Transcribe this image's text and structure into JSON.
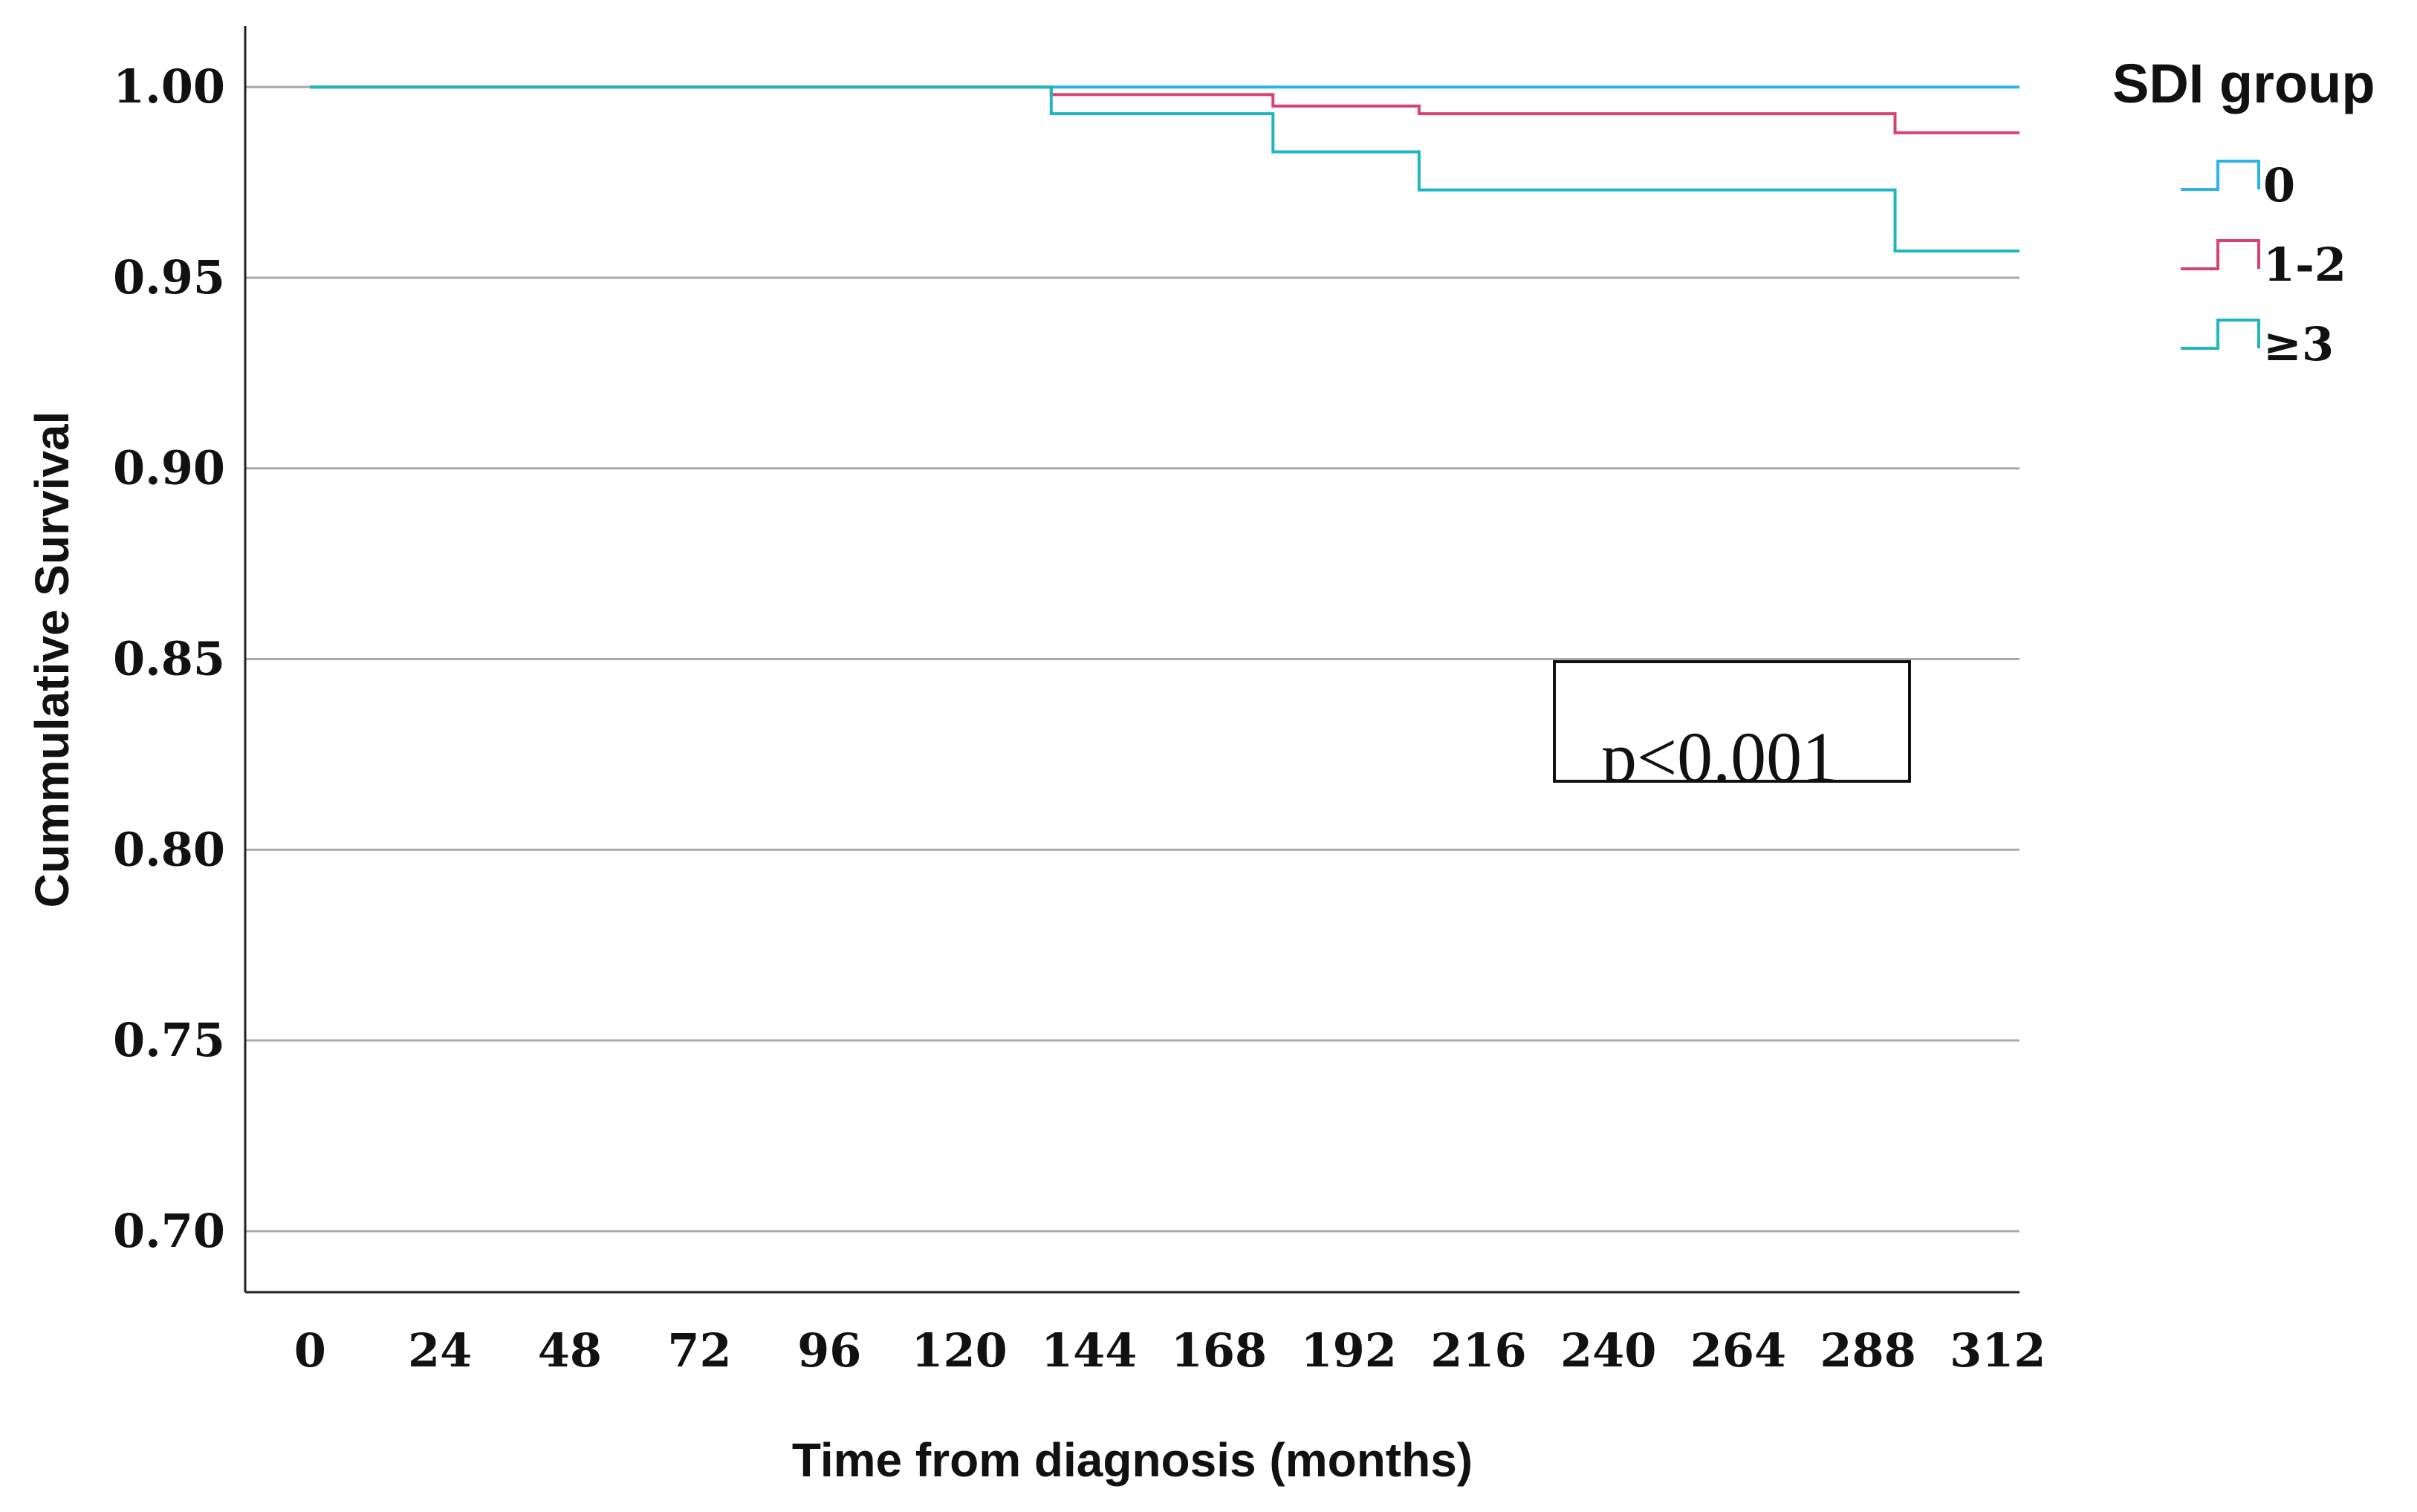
{
  "chart_data": {
    "type": "line",
    "title": "",
    "xlabel": "Time from diagnosis (months)",
    "ylabel": "Cummulative Survival",
    "xlim": [
      -12,
      316
    ],
    "ylim": [
      0.684,
      1.016
    ],
    "x_ticks": [
      0,
      24,
      48,
      72,
      96,
      120,
      144,
      168,
      192,
      216,
      240,
      264,
      288,
      312
    ],
    "x_tick_labels": [
      "0",
      "24",
      "48",
      "72",
      "96",
      "120",
      "144",
      "168",
      "192",
      "216",
      "240",
      "264",
      "288",
      "312"
    ],
    "y_ticks": [
      0.7,
      0.75,
      0.8,
      0.85,
      0.9,
      0.95,
      1.0
    ],
    "y_tick_labels": [
      "0.70",
      "0.75",
      "0.80",
      "0.85",
      "0.90",
      "0.95",
      "1.00"
    ],
    "grid": "horizontal",
    "legend": {
      "title": "SDI group",
      "position": "top-right"
    },
    "annotation": "p<0.001",
    "series": [
      {
        "name": "0",
        "color": "#29b5e8",
        "step": [
          [
            0,
            1.0
          ],
          [
            316,
            1.0
          ]
        ]
      },
      {
        "name": "1-2",
        "color": "#d9426f",
        "step": [
          [
            0,
            1.0
          ],
          [
            137,
            1.0
          ],
          [
            137,
            0.998
          ],
          [
            178,
            0.998
          ],
          [
            178,
            0.995
          ],
          [
            205,
            0.995
          ],
          [
            205,
            0.993
          ],
          [
            293,
            0.993
          ],
          [
            293,
            0.988
          ],
          [
            316,
            0.988
          ]
        ]
      },
      {
        "name": "≥3",
        "color": "#1fb5c2",
        "step": [
          [
            0,
            1.0
          ],
          [
            137,
            1.0
          ],
          [
            137,
            0.993
          ],
          [
            178,
            0.993
          ],
          [
            178,
            0.983
          ],
          [
            205,
            0.983
          ],
          [
            205,
            0.973
          ],
          [
            293,
            0.973
          ],
          [
            293,
            0.957
          ],
          [
            316,
            0.957
          ]
        ]
      }
    ]
  }
}
